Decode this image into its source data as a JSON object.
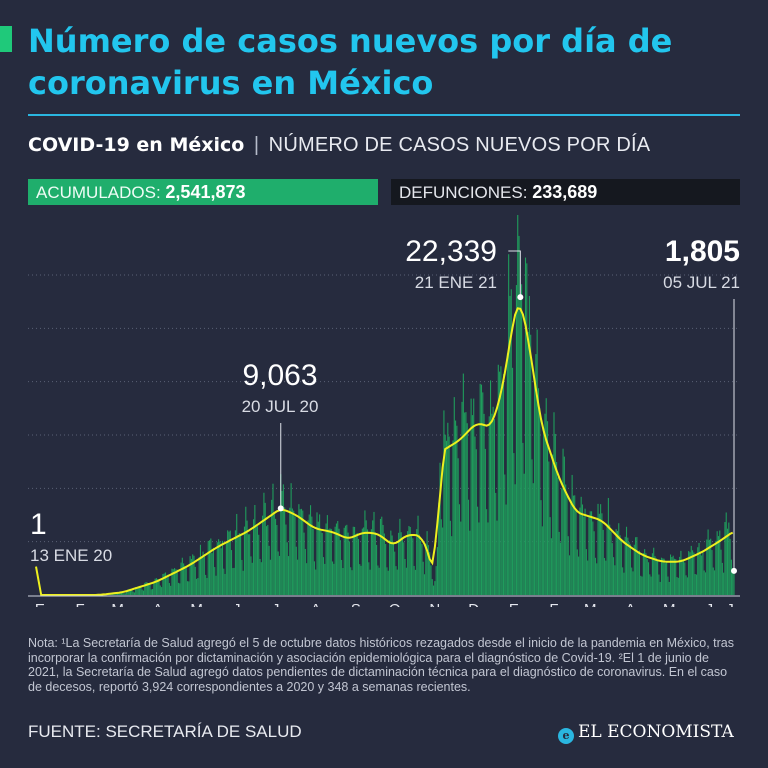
{
  "header": {
    "title": "Número de casos nuevos por día de coronavirus en México",
    "subtitle_bold": "COVID-19 en México",
    "subtitle_sep": "|",
    "subtitle_rest": "NÚMERO DE CASOS NUEVOS POR DÍA"
  },
  "stats": {
    "acumulados_label": "ACUMULADOS:",
    "acumulados_value": "2,541,873",
    "defunciones_label": "DEFUNCIONES:",
    "defunciones_value": "233,689"
  },
  "colors": {
    "background": "#262b3e",
    "bars": "#1f9c5c",
    "trend_line": "#eef01e",
    "title": "#22c6ee",
    "acumulados_box": "#1fae6c",
    "defunciones_box": "#15181f"
  },
  "chart_data": {
    "type": "bar",
    "overlay": "line (moving average)",
    "x_axis_months": [
      "E",
      "F",
      "M",
      "A",
      "M",
      "J",
      "J",
      "A",
      "S",
      "O",
      "N",
      "D",
      "E",
      "F",
      "M",
      "A",
      "M",
      "J",
      "J"
    ],
    "ylim": [
      0,
      24000
    ],
    "grid": "horizontal dotted",
    "annotations": [
      {
        "value": "1",
        "date": "13 ENE 20"
      },
      {
        "value": "9,063",
        "date": "20 JUL 20"
      },
      {
        "value": "22,339",
        "date": "21 ENE 21"
      },
      {
        "value": "1,805",
        "date": "05 JUL 21"
      }
    ],
    "trend": {
      "series": [
        {
          "date": "2020-01-13",
          "value": 0
        },
        {
          "date": "2020-03-01",
          "value": 0
        },
        {
          "date": "2020-03-20",
          "value": 200
        },
        {
          "date": "2020-04-15",
          "value": 1000
        },
        {
          "date": "2020-05-10",
          "value": 2200
        },
        {
          "date": "2020-06-01",
          "value": 3600
        },
        {
          "date": "2020-06-25",
          "value": 4800
        },
        {
          "date": "2020-07-10",
          "value": 5800
        },
        {
          "date": "2020-07-20",
          "value": 6500
        },
        {
          "date": "2020-08-01",
          "value": 6000
        },
        {
          "date": "2020-08-15",
          "value": 5000
        },
        {
          "date": "2020-08-30",
          "value": 4700
        },
        {
          "date": "2020-09-10",
          "value": 4200
        },
        {
          "date": "2020-09-22",
          "value": 4700
        },
        {
          "date": "2020-10-03",
          "value": 4600
        },
        {
          "date": "2020-10-15",
          "value": 3700
        },
        {
          "date": "2020-10-25",
          "value": 4500
        },
        {
          "date": "2020-11-05",
          "value": 4500
        },
        {
          "date": "2020-11-12",
          "value": 3000
        },
        {
          "date": "2020-11-16",
          "value": 1000
        },
        {
          "date": "2020-11-18",
          "value": 3000
        },
        {
          "date": "2020-11-20",
          "value": 10700
        },
        {
          "date": "2020-12-05",
          "value": 11600
        },
        {
          "date": "2020-12-18",
          "value": 12900
        },
        {
          "date": "2020-12-30",
          "value": 12600
        },
        {
          "date": "2021-01-08",
          "value": 15800
        },
        {
          "date": "2021-01-16",
          "value": 21000
        },
        {
          "date": "2021-01-21",
          "value": 22339
        },
        {
          "date": "2021-01-28",
          "value": 18700
        },
        {
          "date": "2021-02-06",
          "value": 12800
        },
        {
          "date": "2021-02-20",
          "value": 8700
        },
        {
          "date": "2021-03-05",
          "value": 6200
        },
        {
          "date": "2021-03-25",
          "value": 5600
        },
        {
          "date": "2021-04-10",
          "value": 4000
        },
        {
          "date": "2021-04-25",
          "value": 3000
        },
        {
          "date": "2021-05-10",
          "value": 2500
        },
        {
          "date": "2021-05-25",
          "value": 2500
        },
        {
          "date": "2021-06-10",
          "value": 3200
        },
        {
          "date": "2021-06-25",
          "value": 4100
        },
        {
          "date": "2021-07-05",
          "value": 4800
        }
      ]
    }
  },
  "footer": {
    "note": "Nota: ¹La Secretaría de Salud agregó el 5 de octubre datos históricos rezagados desde el inicio de la pandemia en México, tras incorporar la confirmación por dictaminación y asociación epidemiológica para el diagnóstico de Covid-19. ²El 1 de junio de 2021, la Secretaría de Salud agregó datos pendientes de dictaminación técnica para el diagnóstico de coronavirus. En el caso de decesos, reportó 3,924 correspondientes a 2020 y 348 a semanas recientes.",
    "source": "FUENTE: SECRETARÍA DE SALUD",
    "logo_text": "EL ECONOMISTA",
    "logo_icon": "el-economista-logo-icon"
  }
}
